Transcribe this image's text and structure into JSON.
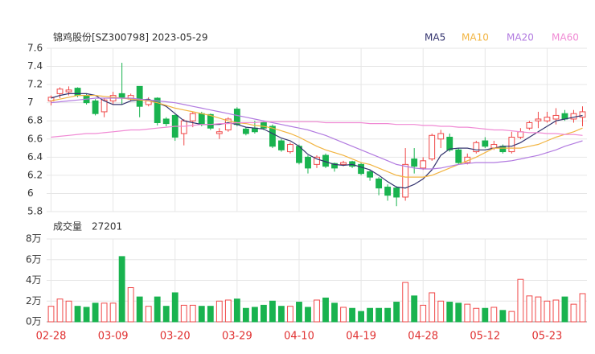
{
  "chart_data": {
    "type": "candlestick",
    "title": "锦鸡股份[SZ300798] 2023-05-29",
    "volume_title": "成交量",
    "volume_latest": 27201,
    "categories": [
      "02-28",
      null,
      null,
      null,
      null,
      null,
      null,
      "03-09",
      null,
      null,
      null,
      null,
      null,
      null,
      "03-20",
      null,
      null,
      null,
      null,
      null,
      null,
      "03-29",
      null,
      null,
      null,
      null,
      null,
      null,
      "04-10",
      null,
      null,
      null,
      null,
      null,
      null,
      "04-19",
      null,
      null,
      null,
      null,
      null,
      null,
      "04-28",
      null,
      null,
      null,
      null,
      null,
      null,
      "05-12",
      null,
      null,
      null,
      null,
      null,
      null,
      "05-23",
      null,
      null,
      null,
      null
    ],
    "open": [
      7.02,
      7.1,
      7.12,
      7.16,
      7.08,
      7.02,
      6.9,
      7.02,
      7.1,
      7.04,
      7.18,
      6.98,
      7.05,
      6.82,
      6.86,
      6.66,
      6.8,
      6.88,
      6.87,
      6.66,
      6.7,
      6.93,
      6.71,
      6.72,
      6.78,
      6.74,
      6.58,
      6.46,
      6.52,
      6.4,
      6.32,
      6.42,
      6.33,
      6.32,
      6.35,
      6.32,
      6.24,
      6.16,
      6.07,
      6.06,
      5.96,
      6.38,
      6.28,
      6.38,
      6.6,
      6.62,
      6.48,
      6.34,
      6.46,
      6.58,
      6.5,
      6.52,
      6.46,
      6.62,
      6.72,
      6.8,
      6.8,
      6.82,
      6.88,
      6.82,
      6.84
    ],
    "high": [
      7.08,
      7.17,
      7.18,
      7.17,
      7.1,
      7.04,
      7.05,
      7.12,
      7.44,
      7.1,
      7.18,
      7.06,
      7.06,
      6.84,
      6.87,
      6.82,
      6.9,
      6.9,
      6.88,
      6.72,
      6.84,
      6.95,
      6.73,
      6.8,
      6.8,
      6.76,
      6.6,
      6.56,
      6.54,
      6.42,
      6.42,
      6.44,
      6.34,
      6.36,
      6.36,
      6.34,
      6.26,
      6.18,
      6.1,
      6.08,
      6.5,
      6.5,
      6.4,
      6.66,
      6.7,
      6.66,
      6.5,
      6.44,
      6.58,
      6.62,
      6.58,
      6.54,
      6.68,
      6.72,
      6.8,
      6.9,
      6.9,
      6.94,
      6.92,
      6.92,
      6.96
    ],
    "low": [
      6.97,
      7.05,
      7.08,
      7.06,
      6.98,
      6.86,
      6.84,
      6.98,
      6.98,
      7.02,
      6.84,
      6.96,
      6.75,
      6.74,
      6.58,
      6.53,
      6.73,
      6.74,
      6.7,
      6.6,
      6.68,
      6.74,
      6.64,
      6.66,
      6.7,
      6.5,
      6.46,
      6.44,
      6.32,
      6.22,
      6.28,
      6.28,
      6.24,
      6.3,
      6.28,
      6.2,
      6.14,
      5.98,
      5.92,
      5.86,
      5.92,
      6.22,
      6.26,
      6.36,
      6.5,
      6.46,
      6.32,
      6.32,
      6.44,
      6.5,
      6.48,
      6.44,
      6.44,
      6.6,
      6.7,
      6.72,
      6.78,
      6.76,
      6.8,
      6.78,
      6.74
    ],
    "close": [
      7.06,
      7.15,
      7.14,
      7.08,
      7.0,
      6.88,
      7.03,
      7.08,
      7.06,
      7.08,
      6.96,
      7.02,
      6.78,
      6.77,
      6.62,
      6.8,
      6.88,
      6.76,
      6.72,
      6.68,
      6.82,
      6.76,
      6.66,
      6.68,
      6.72,
      6.52,
      6.48,
      6.54,
      6.34,
      6.28,
      6.4,
      6.3,
      6.28,
      6.34,
      6.3,
      6.22,
      6.18,
      6.06,
      5.98,
      5.96,
      6.32,
      6.3,
      6.36,
      6.64,
      6.66,
      6.48,
      6.34,
      6.4,
      6.56,
      6.52,
      6.54,
      6.46,
      6.62,
      6.68,
      6.78,
      6.82,
      6.84,
      6.86,
      6.82,
      6.88,
      6.9
    ],
    "volume": [
      15000,
      22000,
      20000,
      15000,
      14000,
      18000,
      18000,
      18000,
      63000,
      33000,
      24000,
      15000,
      24000,
      15000,
      28000,
      16000,
      16000,
      15000,
      15000,
      20000,
      21000,
      22000,
      13000,
      14000,
      16000,
      20000,
      15000,
      15000,
      19000,
      14000,
      21000,
      23000,
      18000,
      14000,
      13000,
      10000,
      13000,
      13000,
      13000,
      19000,
      38000,
      25000,
      16000,
      28000,
      20000,
      19000,
      18000,
      17000,
      13000,
      13000,
      14000,
      11000,
      10000,
      41000,
      25000,
      24000,
      20000,
      21000,
      24000,
      17000,
      27201
    ],
    "up_color": "#f04848",
    "down_color": "#19b34f",
    "series": [
      {
        "name": "MA5",
        "color": "#33336e",
        "values": [
          7.05,
          7.08,
          7.1,
          7.1,
          7.1,
          7.08,
          7.02,
          6.98,
          6.98,
          7.02,
          7.03,
          7.04,
          7.0,
          6.96,
          6.88,
          6.8,
          6.78,
          6.76,
          6.76,
          6.76,
          6.78,
          6.76,
          6.73,
          6.72,
          6.71,
          6.66,
          6.61,
          6.58,
          6.52,
          6.43,
          6.38,
          6.35,
          6.32,
          6.31,
          6.32,
          6.29,
          6.26,
          6.2,
          6.13,
          6.07,
          6.06,
          6.1,
          6.16,
          6.26,
          6.42,
          6.49,
          6.5,
          6.5,
          6.48,
          6.48,
          6.5,
          6.52,
          6.52,
          6.56,
          6.62,
          6.68,
          6.74,
          6.8,
          6.82,
          6.84,
          6.86
        ]
      },
      {
        "name": "MA10",
        "color": "#f2b441",
        "values": [
          7.02,
          7.04,
          7.06,
          7.08,
          7.08,
          7.08,
          7.07,
          7.06,
          7.05,
          7.04,
          7.03,
          7.02,
          7.0,
          6.97,
          6.94,
          6.92,
          6.9,
          6.88,
          6.86,
          6.83,
          6.8,
          6.78,
          6.77,
          6.75,
          6.74,
          6.72,
          6.69,
          6.66,
          6.62,
          6.57,
          6.52,
          6.48,
          6.45,
          6.42,
          6.38,
          6.34,
          6.32,
          6.28,
          6.24,
          6.2,
          6.18,
          6.18,
          6.18,
          6.2,
          6.24,
          6.28,
          6.32,
          6.36,
          6.4,
          6.45,
          6.5,
          6.5,
          6.5,
          6.5,
          6.52,
          6.54,
          6.58,
          6.62,
          6.65,
          6.68,
          6.72
        ]
      },
      {
        "name": "MA20",
        "color": "#b27be0",
        "values": [
          7.0,
          7.01,
          7.02,
          7.03,
          7.04,
          7.05,
          7.05,
          7.05,
          7.05,
          7.05,
          7.04,
          7.03,
          7.02,
          7.01,
          7.0,
          6.98,
          6.96,
          6.94,
          6.92,
          6.9,
          6.88,
          6.86,
          6.84,
          6.82,
          6.8,
          6.78,
          6.76,
          6.74,
          6.72,
          6.7,
          6.67,
          6.64,
          6.6,
          6.56,
          6.52,
          6.48,
          6.44,
          6.4,
          6.36,
          6.32,
          6.3,
          6.28,
          6.27,
          6.27,
          6.28,
          6.3,
          6.32,
          6.33,
          6.34,
          6.34,
          6.34,
          6.35,
          6.36,
          6.38,
          6.4,
          6.42,
          6.45,
          6.48,
          6.52,
          6.55,
          6.58
        ]
      },
      {
        "name": "MA60",
        "color": "#f08ad4",
        "values": [
          6.62,
          6.63,
          6.64,
          6.65,
          6.66,
          6.66,
          6.67,
          6.68,
          6.69,
          6.7,
          6.7,
          6.71,
          6.72,
          6.73,
          6.74,
          6.74,
          6.75,
          6.76,
          6.76,
          6.77,
          6.77,
          6.78,
          6.78,
          6.78,
          6.79,
          6.79,
          6.79,
          6.79,
          6.79,
          6.79,
          6.79,
          6.78,
          6.78,
          6.78,
          6.78,
          6.78,
          6.77,
          6.77,
          6.77,
          6.76,
          6.76,
          6.76,
          6.75,
          6.75,
          6.74,
          6.74,
          6.73,
          6.73,
          6.72,
          6.71,
          6.7,
          6.7,
          6.69,
          6.68,
          6.67,
          6.67,
          6.66,
          6.66,
          6.65,
          6.65,
          6.64
        ]
      }
    ],
    "ylim": [
      5.8,
      7.6
    ],
    "yticks": [
      5.8,
      6,
      6.2,
      6.4,
      6.6,
      6.8,
      7,
      7.2,
      7.4,
      7.6
    ],
    "volume_ylim": [
      0,
      80000
    ],
    "volume_yticks": [
      {
        "value": 0,
        "label": "0万"
      },
      {
        "value": 20000,
        "label": "2万"
      },
      {
        "value": 40000,
        "label": "4万"
      },
      {
        "value": 60000,
        "label": "6万"
      },
      {
        "value": 80000,
        "label": "8万"
      }
    ],
    "grid": true
  }
}
